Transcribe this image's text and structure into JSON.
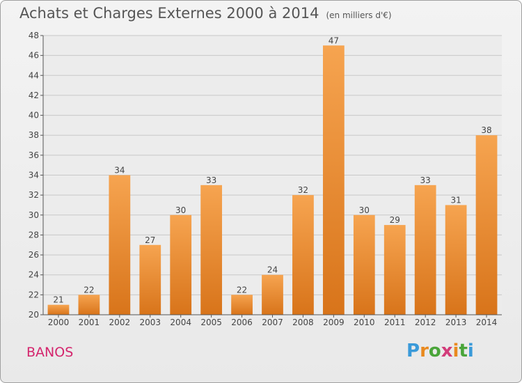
{
  "chart_data": {
    "type": "bar",
    "title": "Achats et Charges Externes 2000 à 2014",
    "unit": "(en milliers d'€)",
    "categories": [
      "2000",
      "2001",
      "2002",
      "2003",
      "2004",
      "2005",
      "2006",
      "2007",
      "2008",
      "2009",
      "2010",
      "2011",
      "2012",
      "2013",
      "2014"
    ],
    "values": [
      21,
      22,
      34,
      27,
      30,
      33,
      22,
      24,
      32,
      47,
      30,
      29,
      33,
      31,
      38
    ],
    "ylim": [
      20,
      48
    ],
    "yticks": [
      20,
      22,
      24,
      26,
      28,
      30,
      32,
      34,
      36,
      38,
      40,
      42,
      44,
      46,
      48
    ],
    "grid": true,
    "bar_color_top": "#f6a450",
    "bar_color_bottom": "#d8741a"
  },
  "commune": "BANOS",
  "logo": {
    "text": "Proxiti"
  }
}
